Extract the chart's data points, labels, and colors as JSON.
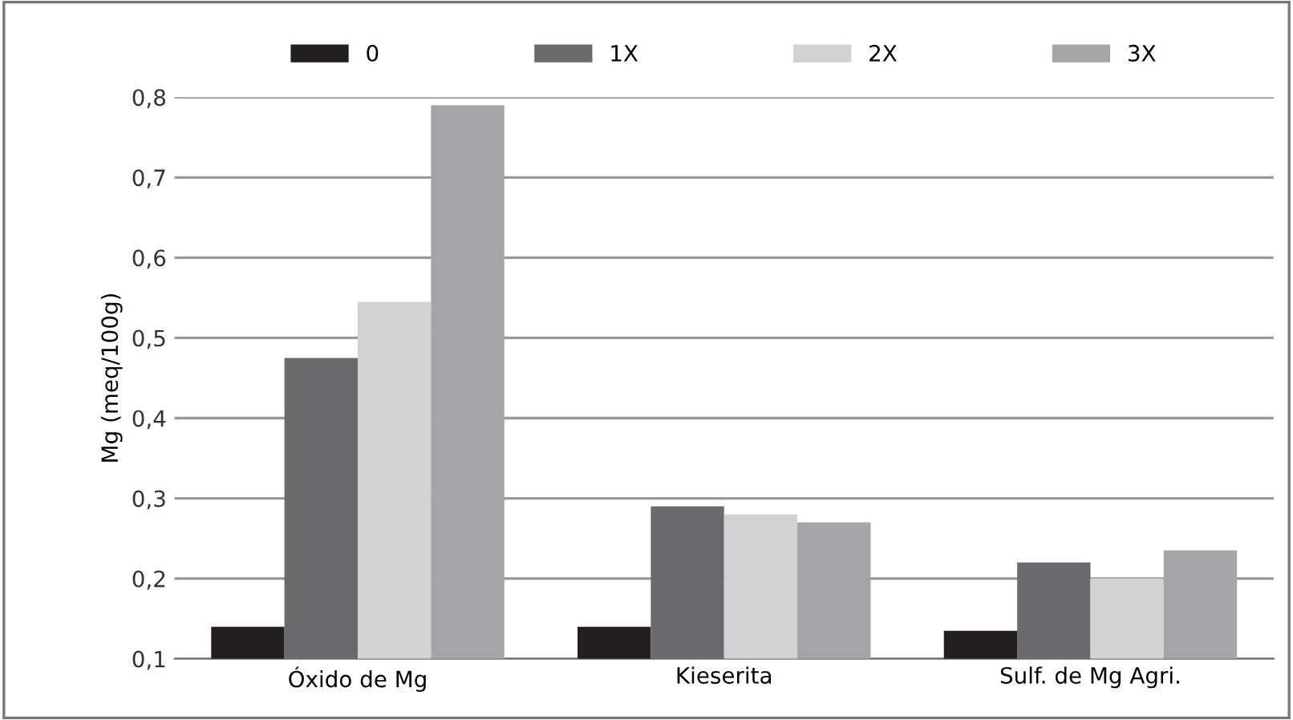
{
  "chart_data": {
    "type": "bar",
    "ylabel": "Mg (meq/100g)",
    "categories": [
      "Óxido de Mg",
      "Kieserita",
      "Sulf. de Mg Agri."
    ],
    "series": [
      {
        "name": "0",
        "color": "#231f20",
        "values": [
          0.14,
          0.14,
          0.135
        ]
      },
      {
        "name": "1X",
        "color": "#6a6a6c",
        "values": [
          0.475,
          0.29,
          0.22
        ]
      },
      {
        "name": "2X",
        "color": "#d2d2d3",
        "values": [
          0.545,
          0.28,
          0.2
        ]
      },
      {
        "name": "3X",
        "color": "#a5a5a7",
        "values": [
          0.79,
          0.27,
          0.235
        ]
      }
    ],
    "ylim": [
      0.1,
      0.8
    ],
    "yticks": [
      {
        "value": 0.1,
        "label": "0,1"
      },
      {
        "value": 0.2,
        "label": "0,2"
      },
      {
        "value": 0.3,
        "label": "0,3"
      },
      {
        "value": 0.4,
        "label": "0,4"
      },
      {
        "value": 0.5,
        "label": "0,5"
      },
      {
        "value": 0.6,
        "label": "0,6"
      },
      {
        "value": 0.7,
        "label": "0,7"
      },
      {
        "value": 0.8,
        "label": "0,8"
      }
    ],
    "grid": "y",
    "legend": "top"
  }
}
